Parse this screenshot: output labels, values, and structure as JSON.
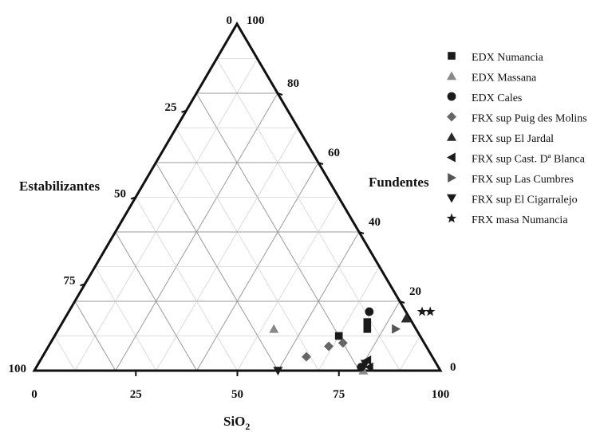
{
  "chart_data": {
    "type": "scatter",
    "subtype": "ternary",
    "axes": {
      "bottom": {
        "label": "SiO",
        "label_subscript": "2",
        "ticks": [
          "0",
          "25",
          "50",
          "75",
          "100"
        ]
      },
      "left": {
        "label": "Estabilizantes",
        "ticks": [
          "0",
          "25",
          "50",
          "75",
          "100"
        ]
      },
      "right": {
        "label": "Fundentes",
        "ticks": [
          "0",
          "20",
          "40",
          "60",
          "80",
          "100"
        ]
      }
    },
    "grid": true,
    "legend_position": "top-right",
    "series": [
      {
        "name": "EDX Numancia",
        "marker": "square",
        "color": "#1a1a1a",
        "points": [
          {
            "sio2": 75,
            "fundentes": 14
          },
          {
            "sio2": 76,
            "fundentes": 12
          },
          {
            "sio2": 70,
            "fundentes": 10
          }
        ]
      },
      {
        "name": "EDX Massana",
        "marker": "triangle-up",
        "color": "#888888",
        "points": [
          {
            "sio2": 53,
            "fundentes": 12
          },
          {
            "sio2": 81,
            "fundentes": 0
          }
        ]
      },
      {
        "name": "EDX Cales",
        "marker": "circle",
        "color": "#1a1a1a",
        "points": [
          {
            "sio2": 74,
            "fundentes": 17
          },
          {
            "sio2": 80,
            "fundentes": 1
          }
        ]
      },
      {
        "name": "FRX sup Puig des Molins",
        "marker": "diamond",
        "color": "#666666",
        "points": [
          {
            "sio2": 65,
            "fundentes": 4
          },
          {
            "sio2": 69,
            "fundentes": 7
          },
          {
            "sio2": 72,
            "fundentes": 8
          }
        ]
      },
      {
        "name": "FRX sup El Jardal",
        "marker": "triangle-up",
        "color": "#2a2a2a",
        "points": [
          {
            "sio2": 84,
            "fundentes": 15
          }
        ]
      },
      {
        "name": "FRX sup Cast. Dª Blanca",
        "marker": "triangle-left",
        "color": "#1a1a1a",
        "points": [
          {
            "sio2": 82,
            "fundentes": 1
          },
          {
            "sio2": 80.5,
            "fundentes": 3
          }
        ]
      },
      {
        "name": "FRX sup Las Cumbres",
        "marker": "triangle-right",
        "color": "#555555",
        "points": [
          {
            "sio2": 83,
            "fundentes": 12
          }
        ]
      },
      {
        "name": "FRX sup El Cigarralejo",
        "marker": "triangle-down",
        "color": "#1a1a1a",
        "points": [
          {
            "sio2": 60,
            "fundentes": 0
          },
          {
            "sio2": 80.5,
            "fundentes": 2
          }
        ]
      },
      {
        "name": "FRX masa Numancia",
        "marker": "star",
        "color": "#1a1a1a",
        "points": [
          {
            "sio2": 87,
            "fundentes": 17
          },
          {
            "sio2": 89,
            "fundentes": 17
          }
        ]
      }
    ]
  }
}
